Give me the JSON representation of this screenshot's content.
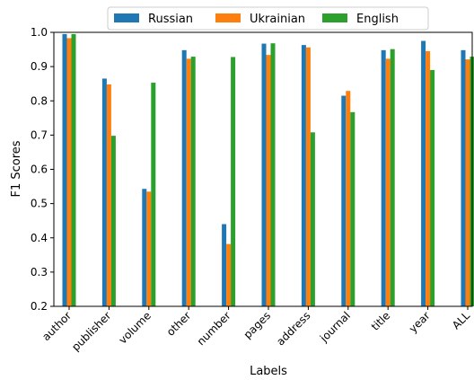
{
  "chart_data": {
    "type": "bar",
    "title": "",
    "xlabel": "Labels",
    "ylabel": "F1 Scores",
    "ylim": [
      0.2,
      1.0
    ],
    "yticks": [
      "0.2",
      "0.3",
      "0.4",
      "0.5",
      "0.6",
      "0.7",
      "0.8",
      "0.9",
      "1.0"
    ],
    "legend_position": "top-center",
    "grid": false,
    "categories": [
      "author",
      "publisher",
      "volume",
      "other",
      "number",
      "pages",
      "address",
      "journal",
      "title",
      "year",
      "ALL"
    ],
    "series": [
      {
        "name": "Russian",
        "color": "#1f77b4",
        "values": [
          0.995,
          0.865,
          0.543,
          0.948,
          0.44,
          0.967,
          0.963,
          0.815,
          0.948,
          0.975,
          0.948
        ]
      },
      {
        "name": "Ukrainian",
        "color": "#ff7f0e",
        "values": [
          0.983,
          0.848,
          0.535,
          0.923,
          0.382,
          0.934,
          0.956,
          0.829,
          0.923,
          0.945,
          0.921
        ]
      },
      {
        "name": "English",
        "color": "#2ca02c",
        "values": [
          0.995,
          0.698,
          0.853,
          0.929,
          0.928,
          0.968,
          0.708,
          0.767,
          0.951,
          0.89,
          0.929
        ]
      }
    ]
  }
}
